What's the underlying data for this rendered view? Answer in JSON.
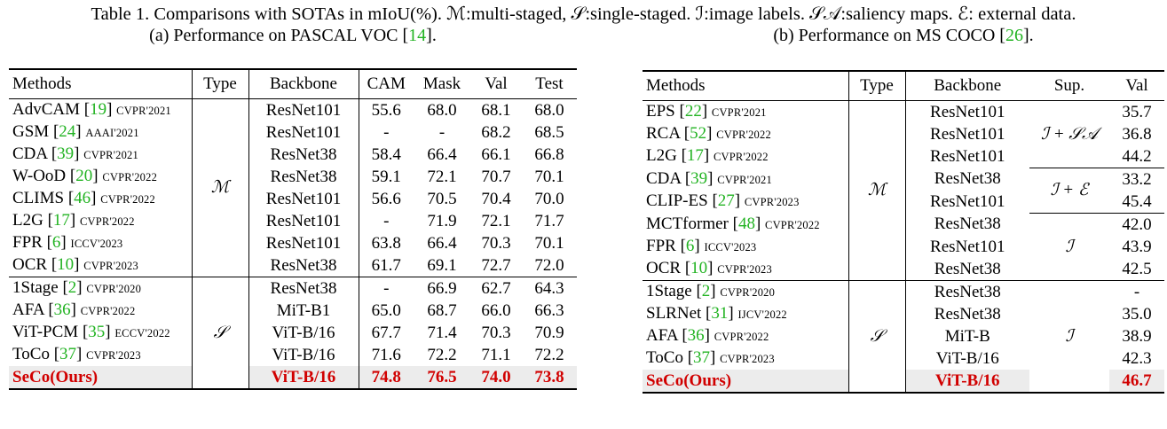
{
  "caption": "Table 1. Comparisons with SOTAs in mIoU(%). ℳ:multi-staged, 𝒮:single-staged. ℐ:image labels. 𝒮𝒜:saliency maps. ℰ: external data.",
  "sub_a": {
    "text": "(a) Performance on PASCAL VOC [",
    "cite": "14",
    "end": "]."
  },
  "sub_b": {
    "text": "(b) Performance on MS COCO [",
    "cite": "26",
    "end": "]."
  },
  "voc": {
    "headers": [
      "Methods",
      "Type",
      "Backbone",
      "CAM",
      "Mask",
      "Val",
      "Test"
    ],
    "type_multi": "ℳ",
    "type_single": "𝒮",
    "rows_multi": [
      {
        "name": "AdvCAM",
        "cite": "19",
        "venue": "CVPR'2021",
        "backbone": "ResNet101",
        "cam": "55.6",
        "mask": "68.0",
        "val": "68.1",
        "test": "68.0"
      },
      {
        "name": "GSM",
        "cite": "24",
        "venue": "AAAI'2021",
        "backbone": "ResNet101",
        "cam": "-",
        "mask": "-",
        "val": "68.2",
        "test": "68.5"
      },
      {
        "name": "CDA",
        "cite": "39",
        "venue": "CVPR'2021",
        "backbone": "ResNet38",
        "cam": "58.4",
        "mask": "66.4",
        "val": "66.1",
        "test": "66.8"
      },
      {
        "name": "W-OoD",
        "cite": "20",
        "venue": "CVPR'2022",
        "backbone": "ResNet38",
        "cam": "59.1",
        "mask": "72.1",
        "val": "70.7",
        "test": "70.1"
      },
      {
        "name": "CLIMS",
        "cite": "46",
        "venue": "CVPR'2022",
        "backbone": "ResNet101",
        "cam": "56.6",
        "mask": "70.5",
        "val": "70.4",
        "test": "70.0"
      },
      {
        "name": "L2G",
        "cite": "17",
        "venue": "CVPR'2022",
        "backbone": "ResNet101",
        "cam": "-",
        "mask": "71.9",
        "val": "72.1",
        "test": "71.7"
      },
      {
        "name": "FPR",
        "cite": "6",
        "venue": "ICCV'2023",
        "backbone": "ResNet101",
        "cam": "63.8",
        "mask": "66.4",
        "val": "70.3",
        "test": "70.1"
      },
      {
        "name": "OCR",
        "cite": "10",
        "venue": "CVPR'2023",
        "backbone": "ResNet38",
        "cam": "61.7",
        "mask": "69.1",
        "val": "72.7",
        "test": "72.0"
      }
    ],
    "rows_single": [
      {
        "name": "1Stage",
        "cite": "2",
        "venue": "CVPR'2020",
        "backbone": "ResNet38",
        "cam": "-",
        "mask": "66.9",
        "val": "62.7",
        "test": "64.3"
      },
      {
        "name": "AFA",
        "cite": "36",
        "venue": "CVPR'2022",
        "backbone": "MiT-B1",
        "cam": "65.0",
        "mask": "68.7",
        "val": "66.0",
        "test": "66.3"
      },
      {
        "name": "ViT-PCM",
        "cite": "35",
        "venue": "ECCV'2022",
        "backbone": "ViT-B/16",
        "cam": "67.7",
        "mask": "71.4",
        "val": "70.3",
        "test": "70.9"
      },
      {
        "name": "ToCo",
        "cite": "37",
        "venue": "CVPR'2023",
        "backbone": "ViT-B/16",
        "cam": "71.6",
        "mask": "72.2",
        "val": "71.1",
        "test": "72.2"
      }
    ],
    "ours": {
      "name": "SeCo(Ours)",
      "backbone": "ViT-B/16",
      "cam": "74.8",
      "mask": "76.5",
      "val": "74.0",
      "test": "73.8"
    }
  },
  "coco": {
    "headers": [
      "Methods",
      "Type",
      "Backbone",
      "Sup.",
      "Val"
    ],
    "type_multi": "ℳ",
    "type_single": "𝒮",
    "sup_sa": "ℐ + 𝒮𝒜",
    "sup_e": "ℐ + ℰ",
    "sup_i": "ℐ",
    "sup_i2": "ℐ",
    "rows_multi": [
      {
        "name": "EPS",
        "cite": "22",
        "venue": "CVPR'2021",
        "backbone": "ResNet101",
        "val": "35.7"
      },
      {
        "name": "RCA",
        "cite": "52",
        "venue": "CVPR'2022",
        "backbone": "ResNet101",
        "val": "36.8"
      },
      {
        "name": "L2G",
        "cite": "17",
        "venue": "CVPR'2022",
        "backbone": "ResNet101",
        "val": "44.2"
      },
      {
        "name": "CDA",
        "cite": "39",
        "venue": "CVPR'2021",
        "backbone": "ResNet38",
        "val": "33.2"
      },
      {
        "name": "CLIP-ES",
        "cite": "27",
        "venue": "CVPR'2023",
        "backbone": "ResNet101",
        "val": "45.4"
      },
      {
        "name": "MCTformer",
        "cite": "48",
        "venue": "CVPR'2022",
        "backbone": "ResNet38",
        "val": "42.0"
      },
      {
        "name": "FPR",
        "cite": "6",
        "venue": "ICCV'2023",
        "backbone": "ResNet101",
        "val": "43.9"
      },
      {
        "name": "OCR",
        "cite": "10",
        "venue": "CVPR'2023",
        "backbone": "ResNet38",
        "val": "42.5"
      }
    ],
    "rows_single": [
      {
        "name": "1Stage",
        "cite": "2",
        "venue": "CVPR'2020",
        "backbone": "ResNet38",
        "val": "-"
      },
      {
        "name": "SLRNet",
        "cite": "31",
        "venue": "IJCV'2022",
        "backbone": "ResNet38",
        "val": "35.0"
      },
      {
        "name": "AFA",
        "cite": "36",
        "venue": "CVPR'2022",
        "backbone": "MiT-B",
        "val": "38.9"
      },
      {
        "name": "ToCo",
        "cite": "37",
        "venue": "CVPR'2023",
        "backbone": "ViT-B/16",
        "val": "42.3"
      }
    ],
    "ours": {
      "name": "SeCo(Ours)",
      "backbone": "ViT-B/16",
      "val": "46.7"
    }
  }
}
